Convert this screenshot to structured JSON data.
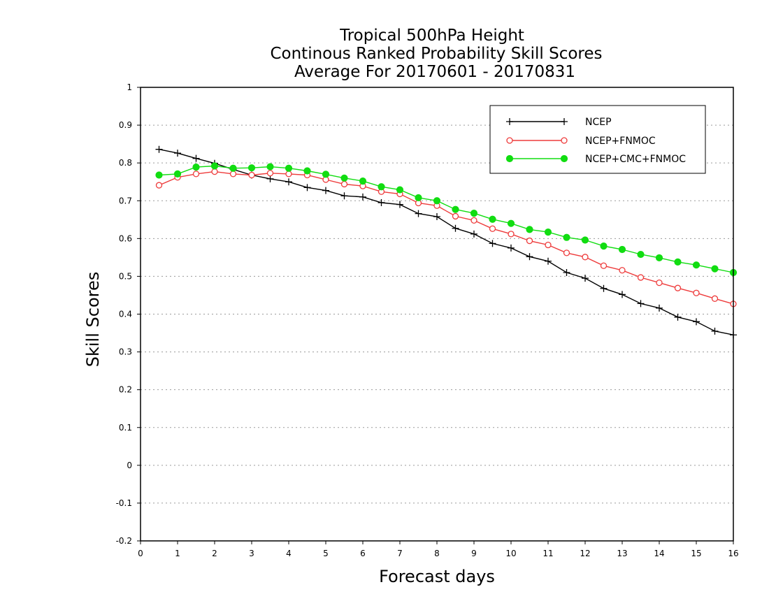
{
  "chart_data": {
    "type": "line",
    "title_lines": [
      "Tropical 500hPa Height",
      "Continous Ranked Probability Skill Scores",
      "Average For 20170601 - 20170831"
    ],
    "xlabel": "Forecast days",
    "ylabel": "Skill Scores",
    "xlim": [
      0,
      16
    ],
    "ylim": [
      -0.2,
      1
    ],
    "x_ticks": [
      0,
      1,
      2,
      3,
      4,
      5,
      6,
      7,
      8,
      9,
      10,
      11,
      12,
      13,
      14,
      15,
      16
    ],
    "y_ticks": [
      -0.2,
      -0.1,
      0,
      0.1,
      0.2,
      0.3,
      0.4,
      0.5,
      0.6,
      0.7,
      0.8,
      0.9,
      1
    ],
    "y_tick_labels": [
      "-0.2",
      "-0.1",
      "0",
      "0.1",
      "0.2",
      "0.3",
      "0.4",
      "0.5",
      "0.6",
      "0.7",
      "0.8",
      "0.9",
      "1"
    ],
    "grid": "horizontal dotted",
    "legend_position": "top-right",
    "x": [
      0.5,
      1,
      1.5,
      2,
      2.5,
      3,
      3.5,
      4,
      4.5,
      5,
      5.5,
      6,
      6.5,
      7,
      7.5,
      8,
      8.5,
      9,
      9.5,
      10,
      10.5,
      11,
      11.5,
      12,
      12.5,
      13,
      13.5,
      14,
      14.5,
      15,
      15.5,
      16
    ],
    "series": [
      {
        "name": "NCEP",
        "color": "#000000",
        "marker": "plus",
        "values": [
          0.836,
          0.826,
          0.812,
          0.799,
          0.783,
          0.768,
          0.758,
          0.75,
          0.735,
          0.727,
          0.713,
          0.71,
          0.695,
          0.69,
          0.666,
          0.658,
          0.627,
          0.612,
          0.587,
          0.575,
          0.552,
          0.54,
          0.51,
          0.495,
          0.468,
          0.452,
          0.428,
          0.416,
          0.392,
          0.38,
          0.355,
          0.345
        ]
      },
      {
        "name": "NCEP+FNMOC",
        "color": "#ee3b3b",
        "marker": "open-circle",
        "values": [
          0.741,
          0.762,
          0.771,
          0.777,
          0.771,
          0.768,
          0.773,
          0.771,
          0.768,
          0.756,
          0.744,
          0.739,
          0.724,
          0.718,
          0.694,
          0.687,
          0.659,
          0.648,
          0.626,
          0.612,
          0.594,
          0.583,
          0.562,
          0.551,
          0.528,
          0.516,
          0.497,
          0.483,
          0.469,
          0.456,
          0.441,
          0.427
        ]
      },
      {
        "name": "NCEP+CMC+FNMOC",
        "color": "#11dd11",
        "marker": "filled-circle",
        "values": [
          0.768,
          0.771,
          0.789,
          0.792,
          0.786,
          0.787,
          0.79,
          0.786,
          0.779,
          0.77,
          0.76,
          0.752,
          0.737,
          0.729,
          0.708,
          0.7,
          0.677,
          0.667,
          0.651,
          0.64,
          0.624,
          0.617,
          0.603,
          0.596,
          0.58,
          0.571,
          0.558,
          0.549,
          0.538,
          0.53,
          0.52,
          0.51
        ]
      }
    ]
  }
}
